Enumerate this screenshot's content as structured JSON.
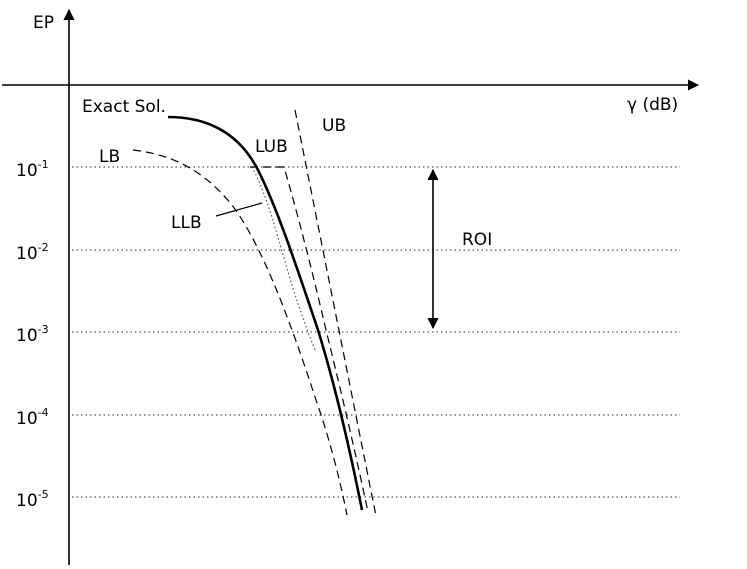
{
  "axes": {
    "y_label": "EP",
    "x_label": "γ (dB)"
  },
  "y_ticks": [
    {
      "base": "10",
      "exp": "-1"
    },
    {
      "base": "10",
      "exp": "-2"
    },
    {
      "base": "10",
      "exp": "-3"
    },
    {
      "base": "10",
      "exp": "-4"
    },
    {
      "base": "10",
      "exp": "-5"
    }
  ],
  "curve_labels": {
    "exact": "Exact Sol.",
    "lb": "LB",
    "lub": "LUB",
    "ub": "UB",
    "llb": "LLB"
  },
  "roi_label": "ROI",
  "colors": {
    "ink": "#000000",
    "grid": "#555555",
    "background": "#ffffff"
  }
}
